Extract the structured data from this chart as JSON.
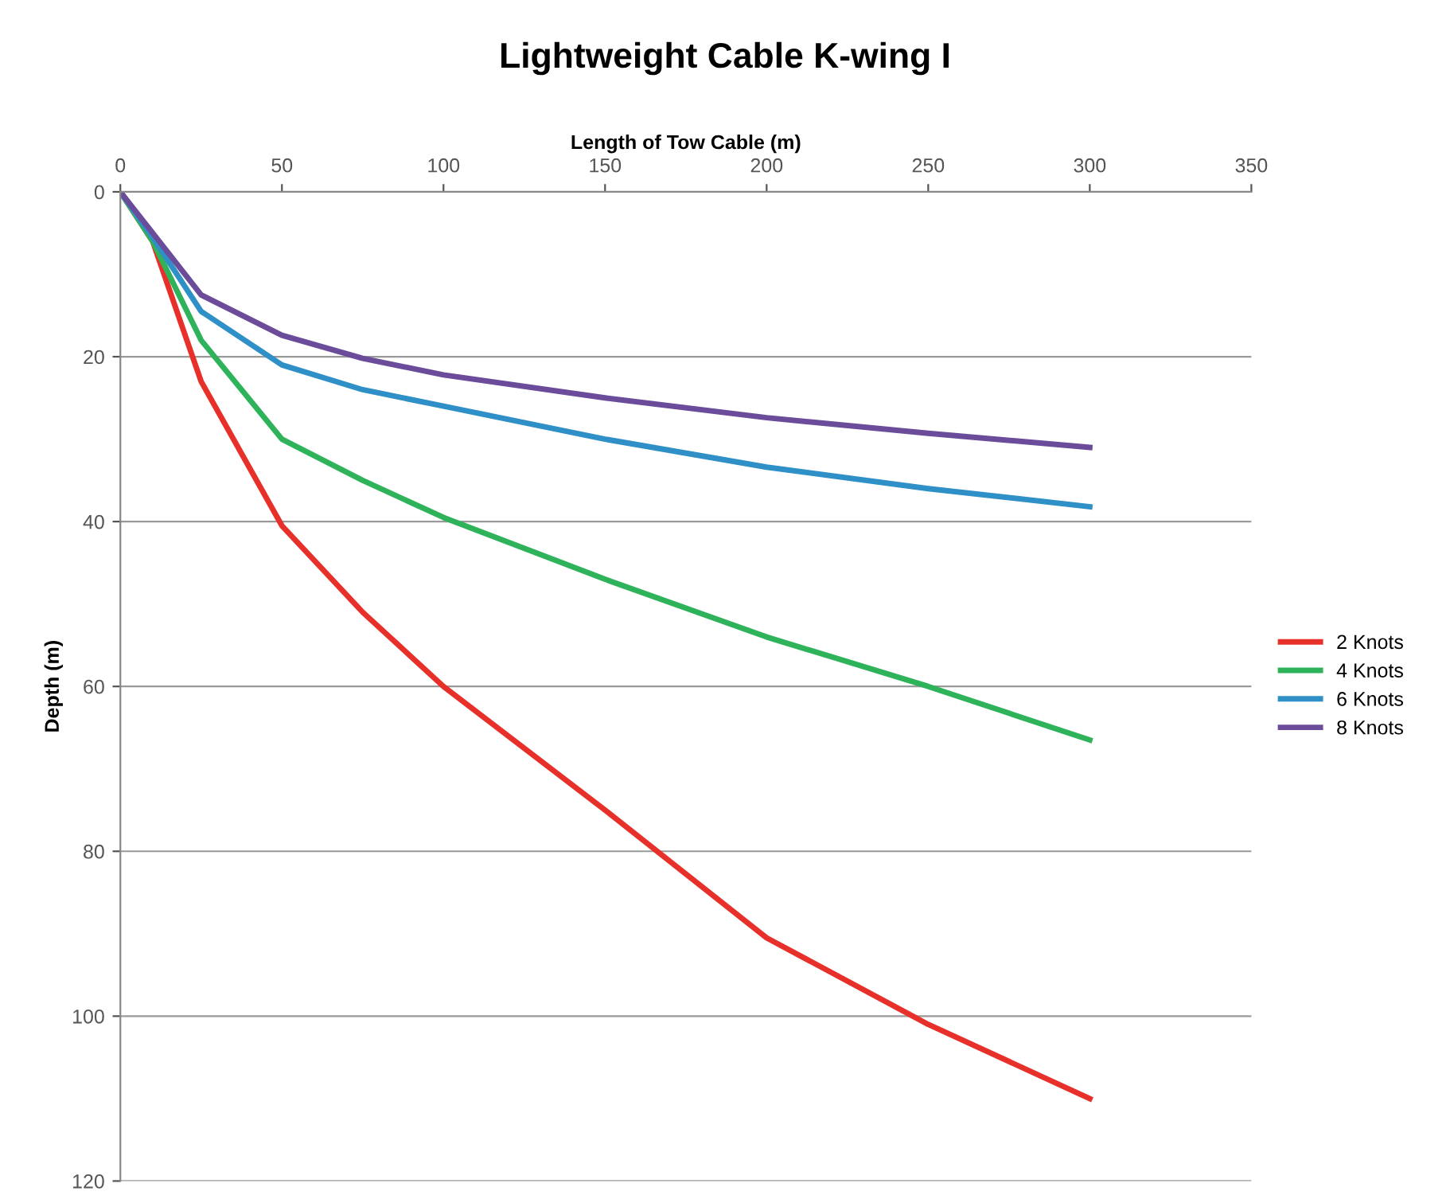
{
  "chart_data": {
    "type": "line",
    "title": "Lightweight Cable K-wing I",
    "xlabel": "Length of Tow Cable (m)",
    "ylabel": "Depth (m)",
    "x": [
      0,
      10,
      25,
      50,
      75,
      100,
      150,
      200,
      250,
      300
    ],
    "series": [
      {
        "name": "2 Knots",
        "color": "#e8302a",
        "values": [
          0,
          6,
          23,
          40.5,
          51,
          60,
          75,
          90.5,
          101,
          110
        ]
      },
      {
        "name": "4 Knots",
        "color": "#2fb35a",
        "values": [
          0,
          6,
          18,
          30,
          35,
          39.5,
          47,
          54,
          60,
          66.5
        ]
      },
      {
        "name": "6 Knots",
        "color": "#2f8fc7",
        "values": [
          0,
          5.5,
          14.5,
          21,
          24,
          26,
          30,
          33.4,
          36,
          38.2
        ]
      },
      {
        "name": "8 Knots",
        "color": "#6b4c9a",
        "values": [
          0,
          5,
          12.5,
          17.4,
          20.2,
          22.2,
          25,
          27.4,
          29.3,
          31
        ]
      }
    ],
    "xlim": [
      0,
      350
    ],
    "xticks": [
      0,
      50,
      100,
      150,
      200,
      250,
      300,
      350
    ],
    "ylim": [
      120,
      0
    ],
    "yticks": [
      0,
      20,
      40,
      60,
      80,
      100,
      120
    ],
    "grid": "y",
    "legend": "right",
    "marker": "none",
    "line_style": "solid"
  }
}
